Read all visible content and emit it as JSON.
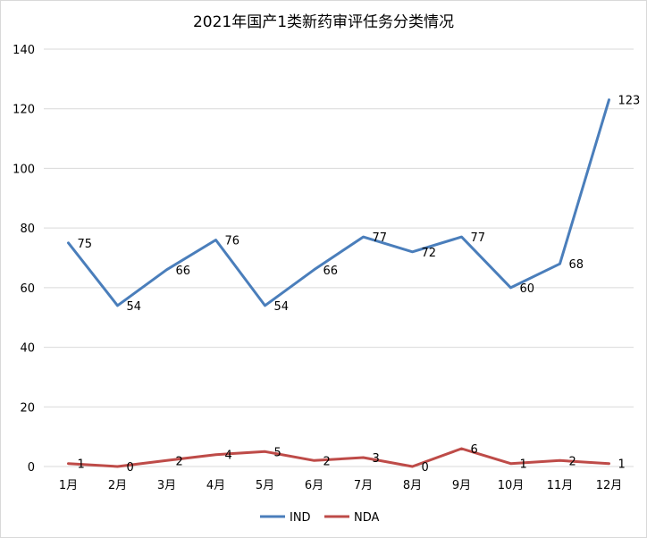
{
  "chart_data": {
    "type": "line",
    "title": "2021年国产1类新药审评任务分类情况",
    "categories": [
      "1月",
      "2月",
      "3月",
      "4月",
      "5月",
      "6月",
      "7月",
      "8月",
      "9月",
      "10月",
      "11月",
      "12月"
    ],
    "ylim": [
      0,
      140
    ],
    "yticks": [
      0,
      20,
      40,
      60,
      80,
      100,
      120,
      140
    ],
    "grid": true,
    "legend_position": "bottom",
    "series": [
      {
        "name": "IND",
        "color": "#4a7ebb",
        "values": [
          75,
          54,
          66,
          76,
          54,
          66,
          77,
          72,
          77,
          60,
          68,
          123
        ]
      },
      {
        "name": "NDA",
        "color": "#be4b48",
        "values": [
          1,
          0,
          2,
          4,
          5,
          2,
          3,
          0,
          6,
          1,
          2,
          1
        ]
      }
    ]
  }
}
